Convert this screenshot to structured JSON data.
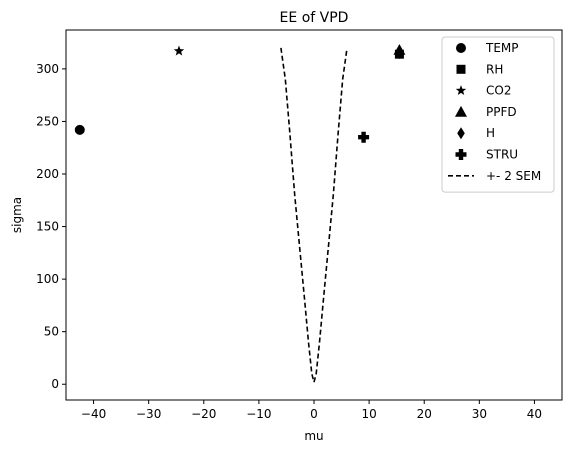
{
  "chart_data": {
    "type": "scatter",
    "title": "EE of VPD",
    "xlabel": "mu",
    "ylabel": "sigma",
    "xlim": [
      -45,
      45
    ],
    "ylim": [
      -15,
      337
    ],
    "xticks": [
      -40,
      -30,
      -20,
      -10,
      0,
      10,
      20,
      30,
      40
    ],
    "yticks": [
      0,
      50,
      100,
      150,
      200,
      250,
      300
    ],
    "grid": false,
    "legend_position": "top-right",
    "series": [
      {
        "name": "TEMP",
        "marker": "circle",
        "points": [
          {
            "x": -42.5,
            "y": 242
          }
        ]
      },
      {
        "name": "RH",
        "marker": "square",
        "points": [
          {
            "x": 15.5,
            "y": 314
          }
        ]
      },
      {
        "name": "CO2",
        "marker": "star",
        "points": [
          {
            "x": -24.5,
            "y": 317
          }
        ]
      },
      {
        "name": "PPFD",
        "marker": "triangle",
        "points": [
          {
            "x": 15.5,
            "y": 318
          }
        ]
      },
      {
        "name": "H",
        "marker": "diamond",
        "points": [
          {
            "x": 15.5,
            "y": 315
          }
        ]
      },
      {
        "name": "STRU",
        "marker": "plus",
        "points": [
          {
            "x": 9.0,
            "y": 235
          }
        ]
      }
    ],
    "lines": [
      {
        "name": "+- 2 SEM",
        "style": "dashed",
        "left": [
          {
            "x": -6.0,
            "y": 320
          },
          {
            "x": -5.2,
            "y": 290
          },
          {
            "x": -4.4,
            "y": 240
          },
          {
            "x": -3.5,
            "y": 180
          },
          {
            "x": -2.6,
            "y": 130
          },
          {
            "x": -1.7,
            "y": 80
          },
          {
            "x": -1.0,
            "y": 40
          },
          {
            "x": -0.4,
            "y": 10
          },
          {
            "x": 0.0,
            "y": 2
          }
        ],
        "right": [
          {
            "x": 0.0,
            "y": 2
          },
          {
            "x": 0.4,
            "y": 10
          },
          {
            "x": 1.0,
            "y": 40
          },
          {
            "x": 1.7,
            "y": 80
          },
          {
            "x": 2.6,
            "y": 130
          },
          {
            "x": 3.5,
            "y": 180
          },
          {
            "x": 4.4,
            "y": 240
          },
          {
            "x": 5.2,
            "y": 290
          },
          {
            "x": 6.0,
            "y": 320
          }
        ]
      }
    ]
  }
}
